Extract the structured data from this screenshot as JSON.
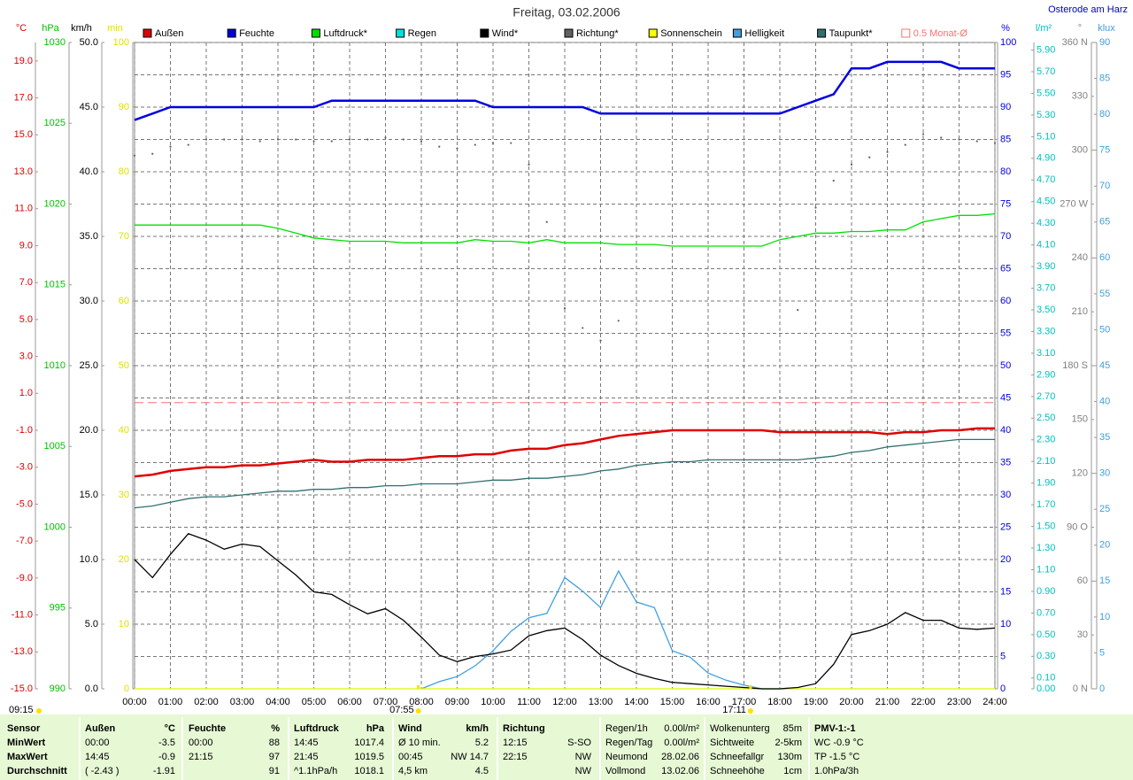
{
  "chart_data": {
    "type": "line",
    "title": "Freitag, 03.02.2006",
    "location": "Osterode am Harz",
    "xlim": [
      0,
      24
    ],
    "xticks": [
      {
        "value": 0,
        "label": "00:00"
      },
      {
        "value": 1,
        "label": "01:00"
      },
      {
        "value": 2,
        "label": "02:00"
      },
      {
        "value": 3,
        "label": "03:00"
      },
      {
        "value": 4,
        "label": "04:00"
      },
      {
        "value": 5,
        "label": "05:00"
      },
      {
        "value": 6,
        "label": "06:00"
      },
      {
        "value": 7,
        "label": "07:00"
      },
      {
        "value": 8,
        "label": "08:00"
      },
      {
        "value": 9,
        "label": "09:00"
      },
      {
        "value": 10,
        "label": "10:00"
      },
      {
        "value": 11,
        "label": "11:00"
      },
      {
        "value": 12,
        "label": "12:00"
      },
      {
        "value": 13,
        "label": "13:00"
      },
      {
        "value": 14,
        "label": "14:00"
      },
      {
        "value": 15,
        "label": "15:00"
      },
      {
        "value": 16,
        "label": "16:00"
      },
      {
        "value": 17,
        "label": "17:00"
      },
      {
        "value": 18,
        "label": "18:00"
      },
      {
        "value": 19,
        "label": "19:00"
      },
      {
        "value": 20,
        "label": "20:00"
      },
      {
        "value": 21,
        "label": "21:00"
      },
      {
        "value": 22,
        "label": "22:00"
      },
      {
        "value": 23,
        "label": "23:00"
      },
      {
        "value": 24,
        "label": "24:00"
      }
    ],
    "grid": true,
    "axes": [
      {
        "label": "°C",
        "color": "#e00000",
        "ylim": [
          -15,
          20
        ],
        "yticks": [
          {
            "value": -15,
            "label": "-15.0"
          },
          {
            "value": -13,
            "label": "-13.0"
          },
          {
            "value": -11,
            "label": "-11.0"
          },
          {
            "value": -9,
            "label": "-9.0"
          },
          {
            "value": -7,
            "label": "-7.0"
          },
          {
            "value": -5,
            "label": "-5.0"
          },
          {
            "value": -3,
            "label": "-3.0"
          },
          {
            "value": -1,
            "label": "-1.0"
          },
          {
            "value": 1,
            "label": "1.0"
          },
          {
            "value": 3,
            "label": "3.0"
          },
          {
            "value": 5,
            "label": "5.0"
          },
          {
            "value": 7,
            "label": "7.0"
          },
          {
            "value": 9,
            "label": "9.0"
          },
          {
            "value": 11,
            "label": "11.0"
          },
          {
            "value": 13,
            "label": "13.0"
          },
          {
            "value": 15,
            "label": "15.0"
          },
          {
            "value": 17,
            "label": "17.0"
          },
          {
            "value": 19,
            "label": "19.0"
          }
        ]
      },
      {
        "label": "hPa",
        "color": "#00c000",
        "ylim": [
          990,
          1030
        ],
        "yticks": [
          990,
          995,
          1000,
          1005,
          1010,
          1015,
          1020,
          1025,
          1030
        ]
      },
      {
        "label": "km/h",
        "color": "#000000",
        "ylim": [
          0,
          50
        ],
        "yticks": [
          {
            "value": 0,
            "label": "0.0"
          },
          {
            "value": 5,
            "label": "5.0"
          },
          {
            "value": 10,
            "label": "10.0"
          },
          {
            "value": 15,
            "label": "15.0"
          },
          {
            "value": 20,
            "label": "20.0"
          },
          {
            "value": 25,
            "label": "25.0"
          },
          {
            "value": 30,
            "label": "30.0"
          },
          {
            "value": 35,
            "label": "35.0"
          },
          {
            "value": 40,
            "label": "40.0"
          },
          {
            "value": 45,
            "label": "45.0"
          },
          {
            "value": 50,
            "label": "50.0"
          }
        ]
      },
      {
        "label": "min",
        "color": "#e0e000",
        "ylim": [
          0,
          100
        ],
        "yticks": [
          0,
          10,
          20,
          30,
          40,
          50,
          60,
          70,
          80,
          90,
          100
        ]
      },
      {
        "label": "%",
        "color": "#0000e0",
        "ylim": [
          0,
          100
        ],
        "grid": true,
        "yticks": [
          0,
          5,
          10,
          15,
          20,
          25,
          30,
          35,
          40,
          45,
          50,
          55,
          60,
          65,
          70,
          75,
          80,
          85,
          90,
          95,
          100
        ]
      },
      {
        "label": "l/m²",
        "color": "#00c0c0",
        "ylim": [
          0,
          5.97
        ],
        "yticks": [
          {
            "value": 0,
            "label": "0.00"
          },
          {
            "value": 0.1,
            "label": "0.10"
          },
          {
            "value": 0.3,
            "label": "0.30"
          },
          {
            "value": 0.5,
            "label": "0.50"
          },
          {
            "value": 0.7,
            "label": "0.70"
          },
          {
            "value": 0.9,
            "label": "0.90"
          },
          {
            "value": 1.1,
            "label": "1.10"
          },
          {
            "value": 1.3,
            "label": "1.30"
          },
          {
            "value": 1.5,
            "label": "1.50"
          },
          {
            "value": 1.7,
            "label": "1.70"
          },
          {
            "value": 1.9,
            "label": "1.90"
          },
          {
            "value": 2.1,
            "label": "2.10"
          },
          {
            "value": 2.3,
            "label": "2.30"
          },
          {
            "value": 2.5,
            "label": "2.50"
          },
          {
            "value": 2.7,
            "label": "2.70"
          },
          {
            "value": 2.9,
            "label": "2.90"
          },
          {
            "value": 3.1,
            "label": "3.10"
          },
          {
            "value": 3.3,
            "label": "3.30"
          },
          {
            "value": 3.5,
            "label": "3.50"
          },
          {
            "value": 3.7,
            "label": "3.70"
          },
          {
            "value": 3.9,
            "label": "3.90"
          },
          {
            "value": 4.1,
            "label": "4.10"
          },
          {
            "value": 4.3,
            "label": "4.30"
          },
          {
            "value": 4.5,
            "label": "4.50"
          },
          {
            "value": 4.7,
            "label": "4.70"
          },
          {
            "value": 4.9,
            "label": "4.90"
          },
          {
            "value": 5.1,
            "label": "5.10"
          },
          {
            "value": 5.3,
            "label": "5.30"
          },
          {
            "value": 5.5,
            "label": "5.50"
          },
          {
            "value": 5.7,
            "label": "5.70"
          },
          {
            "value": 5.9,
            "label": "5.90"
          }
        ]
      },
      {
        "label": "°",
        "color": "#808080",
        "ylim": [
          0,
          360
        ],
        "yticks": [
          {
            "value": 0,
            "label": "0 N"
          },
          30,
          60,
          {
            "value": 90,
            "label": "90 O"
          },
          120,
          150,
          {
            "value": 180,
            "label": "180 S"
          },
          210,
          240,
          {
            "value": 270,
            "label": "270 W"
          },
          300,
          330,
          {
            "value": 360,
            "label": "360 N"
          }
        ]
      },
      {
        "label": "klux",
        "color": "#40a0e0",
        "ylim": [
          0,
          90
        ],
        "yticks": [
          0,
          5,
          10,
          15,
          20,
          25,
          30,
          35,
          40,
          45,
          50,
          55,
          60,
          65,
          70,
          75,
          80,
          85,
          90
        ]
      }
    ],
    "x": [
      0,
      0.5,
      1,
      1.5,
      2,
      2.5,
      3,
      3.5,
      4,
      4.5,
      5,
      5.5,
      6,
      6.5,
      7,
      7.5,
      8,
      8.5,
      9,
      9.5,
      10,
      10.5,
      11,
      11.5,
      12,
      12.5,
      13,
      13.5,
      14,
      14.5,
      15,
      15.5,
      16,
      16.5,
      17,
      17.5,
      18,
      18.5,
      19,
      19.5,
      20,
      20.5,
      21,
      21.5,
      22,
      22.5,
      23,
      23.5,
      24
    ],
    "series": [
      {
        "name": "Außen",
        "color": "#e00000",
        "axis": 0,
        "style": "bold",
        "values": [
          -3.5,
          -3.4,
          -3.2,
          -3.1,
          -3.0,
          -3.0,
          -2.9,
          -2.9,
          -2.8,
          -2.7,
          -2.6,
          -2.7,
          -2.7,
          -2.6,
          -2.6,
          -2.6,
          -2.5,
          -2.4,
          -2.4,
          -2.3,
          -2.3,
          -2.1,
          -2.0,
          -2.0,
          -1.8,
          -1.7,
          -1.5,
          -1.3,
          -1.2,
          -1.1,
          -1.0,
          -1.0,
          -1.0,
          -1.0,
          -1.0,
          -1.0,
          -1.1,
          -1.1,
          -1.1,
          -1.1,
          -1.1,
          -1.1,
          -1.2,
          -1.1,
          -1.1,
          -1.0,
          -1.0,
          -0.9,
          -0.9
        ]
      },
      {
        "name": "Feuchte",
        "color": "#0000e0",
        "axis": 4,
        "style": "bold",
        "values": [
          88,
          89,
          90,
          90,
          90,
          90,
          90,
          90,
          90,
          90,
          90,
          91,
          91,
          91,
          91,
          91,
          91,
          91,
          91,
          91,
          90,
          90,
          90,
          90,
          90,
          90,
          89,
          89,
          89,
          89,
          89,
          89,
          89,
          89,
          89,
          89,
          89,
          90,
          91,
          92,
          96,
          96,
          97,
          97,
          97,
          97,
          96,
          96,
          96
        ]
      },
      {
        "name": "Luftdruck*",
        "color": "#00e000",
        "axis": 1,
        "style": "line",
        "values": [
          1018.7,
          1018.7,
          1018.7,
          1018.7,
          1018.7,
          1018.7,
          1018.7,
          1018.7,
          1018.5,
          1018.2,
          1017.9,
          1017.8,
          1017.7,
          1017.7,
          1017.7,
          1017.6,
          1017.6,
          1017.6,
          1017.6,
          1017.8,
          1017.7,
          1017.7,
          1017.6,
          1017.8,
          1017.6,
          1017.6,
          1017.6,
          1017.5,
          1017.5,
          1017.5,
          1017.4,
          1017.4,
          1017.4,
          1017.4,
          1017.4,
          1017.4,
          1017.8,
          1018.0,
          1018.2,
          1018.2,
          1018.3,
          1018.3,
          1018.4,
          1018.4,
          1018.9,
          1019.1,
          1019.3,
          1019.3,
          1019.4
        ]
      },
      {
        "name": "Regen",
        "color": "#00e0e0",
        "axis": 5,
        "style": "line",
        "values": [
          0,
          0,
          0,
          0,
          0,
          0,
          0,
          0,
          0,
          0,
          0,
          0,
          0,
          0,
          0,
          0,
          0,
          0,
          0,
          0,
          0,
          0,
          0,
          0,
          0,
          0,
          0,
          0,
          0,
          0,
          0,
          0,
          0,
          0,
          0,
          0,
          0,
          0,
          0,
          0,
          0,
          0,
          0,
          0,
          0,
          0,
          0,
          0,
          0
        ]
      },
      {
        "name": "Wind*",
        "color": "#000000",
        "axis": 2,
        "style": "line",
        "values": [
          10.0,
          8.6,
          10.4,
          12.0,
          11.5,
          10.8,
          11.2,
          11.0,
          9.9,
          8.8,
          7.5,
          7.3,
          6.5,
          5.8,
          6.2,
          5.3,
          4.0,
          2.6,
          2.1,
          2.5,
          2.7,
          3.0,
          4.1,
          4.5,
          4.7,
          3.8,
          2.6,
          1.8,
          1.2,
          0.8,
          0.5,
          0.4,
          0.3,
          0.2,
          0.1,
          0.0,
          0.0,
          0.1,
          0.4,
          1.9,
          4.2,
          4.5,
          5.0,
          5.9,
          5.3,
          5.3,
          4.7,
          4.6,
          4.7
        ]
      },
      {
        "name": "Richtung*",
        "color": "#606060",
        "axis": 6,
        "style": "dots",
        "values": [
          297,
          298,
          302,
          303,
          306,
          306,
          306,
          305,
          306,
          306,
          305,
          305,
          306,
          306,
          307,
          306,
          305,
          302,
          301,
          303,
          304,
          304,
          292,
          260,
          212,
          201,
          194,
          205,
          null,
          null,
          null,
          null,
          null,
          null,
          null,
          null,
          null,
          211,
          268,
          283,
          292,
          296,
          299,
          303,
          309,
          307,
          306,
          305,
          304
        ]
      },
      {
        "name": "Sonnenschein",
        "color": "#ffff00",
        "axis": 3,
        "style": "line",
        "values": [
          0,
          0,
          0,
          0,
          0,
          0,
          0,
          0,
          0,
          0,
          0,
          0,
          0,
          0,
          0,
          0,
          0,
          0,
          0,
          0,
          0,
          0,
          0,
          0,
          0,
          0,
          0,
          0,
          0,
          0,
          0,
          0,
          0,
          0,
          0,
          0,
          0,
          0,
          0,
          0,
          0,
          0,
          0,
          0,
          0,
          0,
          0,
          0,
          0
        ]
      },
      {
        "name": "Helligkeit",
        "color": "#40a0e0",
        "axis": 7,
        "style": "line",
        "values": [
          null,
          null,
          null,
          null,
          null,
          null,
          null,
          null,
          null,
          null,
          null,
          null,
          null,
          null,
          null,
          null,
          0,
          1.0,
          1.7,
          3.2,
          5.3,
          8.0,
          9.9,
          10.5,
          15.5,
          13.6,
          11.3,
          16.4,
          12.1,
          11.3,
          5.3,
          4.4,
          2.2,
          1.2,
          0.5,
          0,
          0,
          null,
          null,
          null,
          null,
          null,
          null,
          null,
          null,
          null,
          null,
          null,
          null
        ]
      },
      {
        "name": "Taupunkt*",
        "color": "#307070",
        "axis": 0,
        "style": "line",
        "values": [
          -5.2,
          -5.1,
          -4.9,
          -4.7,
          -4.6,
          -4.6,
          -4.5,
          -4.4,
          -4.3,
          -4.3,
          -4.2,
          -4.2,
          -4.1,
          -4.1,
          -4.0,
          -4.0,
          -3.9,
          -3.9,
          -3.9,
          -3.8,
          -3.7,
          -3.7,
          -3.6,
          -3.6,
          -3.5,
          -3.4,
          -3.2,
          -3.1,
          -2.9,
          -2.8,
          -2.7,
          -2.7,
          -2.6,
          -2.6,
          -2.6,
          -2.6,
          -2.6,
          -2.6,
          -2.5,
          -2.4,
          -2.2,
          -2.1,
          -1.9,
          -1.8,
          -1.7,
          -1.6,
          -1.5,
          -1.5,
          -1.5
        ]
      }
    ],
    "ref_lines": [
      {
        "name": "0.5 Monat-Ø",
        "value": 0.5,
        "axis": 0,
        "color": "#ff7070"
      }
    ],
    "sun_times": [
      {
        "value": 7.9167,
        "label": "07:55"
      },
      {
        "value": 17.1833,
        "label": "17:11"
      }
    ],
    "sunshine_duration": "09:15"
  },
  "stats_table": {
    "rows": [
      [
        "Sensor",
        "Außen",
        "°C",
        "Feuchte",
        "%",
        "Luftdruck",
        "hPa",
        "Wind",
        "km/h",
        "Richtung",
        null,
        "Regen/1h",
        "0.00l/m²",
        "Wolkenunterg",
        "85m",
        "PMV-1:-1"
      ],
      [
        "MinWert",
        "00:00",
        "-3.5",
        "00:00",
        "88",
        "14:45",
        "1017.4",
        "Ø 10 min.",
        "5.2",
        "12:15",
        "S-SO",
        "Regen/Tag",
        "0.00l/m²",
        "Sichtweite",
        "2-5km",
        "WC -0.9 °C"
      ],
      [
        "MaxWert",
        "14:45",
        "-0.9",
        "21:15",
        "97",
        "21:45",
        "1019.5",
        "00:45",
        "NW 14.7",
        "22:15",
        "NW",
        "Neumond",
        "28.02.06",
        "Schneefallgr",
        "130m",
        "TP -1.5 °C"
      ],
      [
        "Durchschnitt",
        "( -2.43 )",
        "-1.91",
        null,
        "91",
        "^1.1hPa/h",
        "1018.1",
        "4,5 km",
        "4.5",
        null,
        "NW",
        "Vollmond",
        "13.02.06",
        "Schneehöhe",
        "1cm",
        "1.0hPa/3h"
      ]
    ]
  }
}
